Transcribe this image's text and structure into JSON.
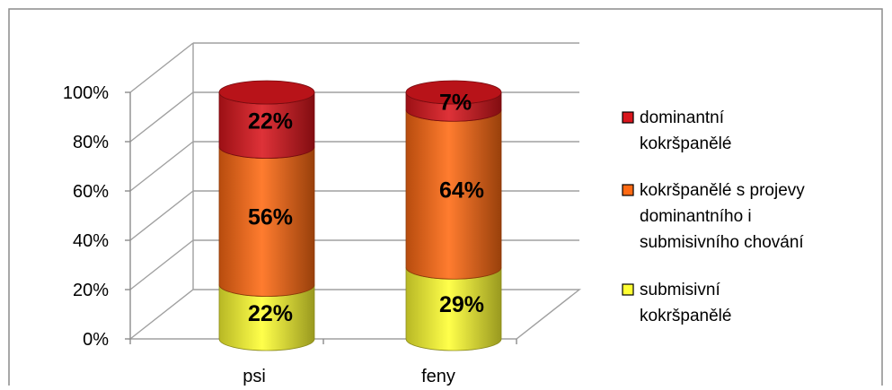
{
  "chart_data": {
    "type": "bar",
    "stacked": true,
    "percent_stacked": true,
    "three_d": true,
    "bar_shape": "cylinder",
    "categories": [
      "psi",
      "feny"
    ],
    "series": [
      {
        "name": "submisivní kokršpanělé",
        "legend_lines": [
          "submisivní",
          "kokršpanělé"
        ],
        "values": [
          22,
          29
        ],
        "labels": [
          "22%",
          "29%"
        ],
        "color": "#ffff33"
      },
      {
        "name": "kokršpanělé s projevy dominantního i submisivního chování",
        "legend_lines": [
          "kokršpanělé s projevy",
          "dominantního i",
          "submisivního chování"
        ],
        "values": [
          56,
          64
        ],
        "labels": [
          "56%",
          "64%"
        ],
        "color": "#ff6a13"
      },
      {
        "name": "dominantní kokršpanělé",
        "legend_lines": [
          "dominantní",
          "kokršpanělé"
        ],
        "values": [
          22,
          7
        ],
        "labels": [
          "22%",
          "7%"
        ],
        "color": "#d9161d"
      }
    ],
    "yticks": [
      "0%",
      "20%",
      "40%",
      "60%",
      "80%",
      "100%"
    ],
    "ylim": [
      0,
      100
    ],
    "grid": true,
    "legend_position": "right",
    "legend_order": "top-to-bottom reversed",
    "title": "",
    "xlabel": "",
    "ylabel": ""
  }
}
